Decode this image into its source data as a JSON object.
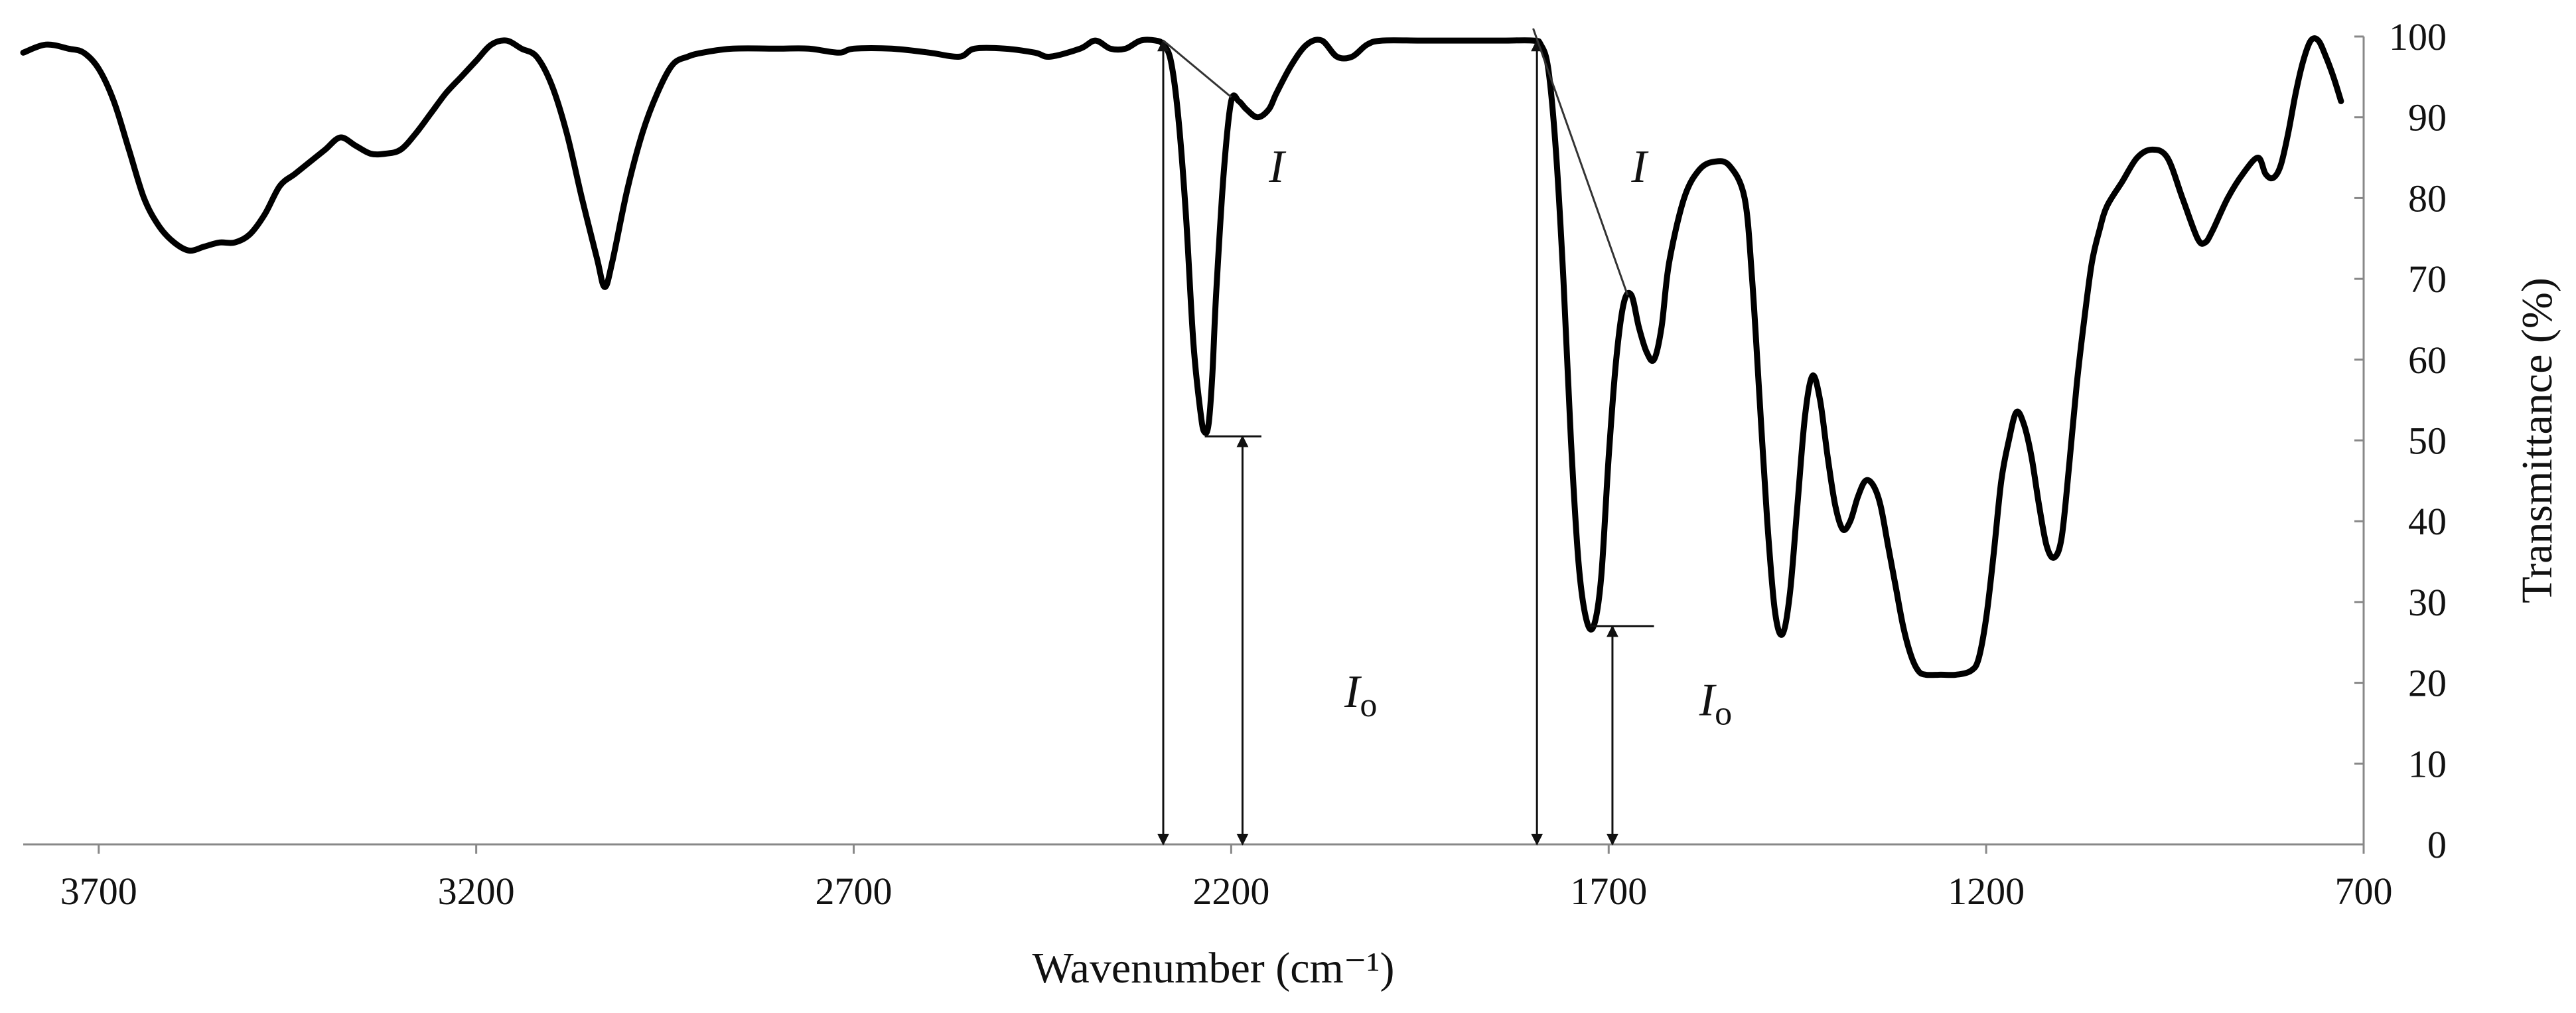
{
  "chart_data": {
    "type": "line",
    "title": "",
    "xlabel": "Wavenumber (cm⁻¹)",
    "ylabel": "Transmittance (%)",
    "xlim": [
      3800,
      700
    ],
    "ylim": [
      0,
      100
    ],
    "x_reversed": true,
    "x_ticks": [
      3700,
      3200,
      2700,
      2200,
      1700,
      1200,
      700
    ],
    "y_ticks": [
      0,
      10,
      20,
      30,
      40,
      50,
      60,
      70,
      80,
      90,
      100
    ],
    "grid": false,
    "line_color": "#000000",
    "annotations": [
      {
        "text": "I",
        "x": 2150,
        "y": 82
      },
      {
        "text": "I",
        "sub": "o",
        "x": 2050,
        "y": 17
      },
      {
        "text": "I",
        "x": 1670,
        "y": 82
      },
      {
        "text": "I",
        "sub": "o",
        "x": 1580,
        "y": 16
      }
    ],
    "series": [
      {
        "points": [
          [
            3800,
            98
          ],
          [
            3770,
            99
          ],
          [
            3740,
            98.5
          ],
          [
            3720,
            98
          ],
          [
            3700,
            96
          ],
          [
            3680,
            92
          ],
          [
            3660,
            86
          ],
          [
            3640,
            80
          ],
          [
            3620,
            76.5
          ],
          [
            3600,
            74.5
          ],
          [
            3580,
            73.5
          ],
          [
            3560,
            74
          ],
          [
            3540,
            74.5
          ],
          [
            3520,
            74.5
          ],
          [
            3500,
            75.5
          ],
          [
            3480,
            78
          ],
          [
            3460,
            81.5
          ],
          [
            3440,
            83
          ],
          [
            3420,
            84.5
          ],
          [
            3400,
            86
          ],
          [
            3380,
            87.5
          ],
          [
            3360,
            86.5
          ],
          [
            3340,
            85.5
          ],
          [
            3320,
            85.5
          ],
          [
            3300,
            86
          ],
          [
            3280,
            88
          ],
          [
            3260,
            90.5
          ],
          [
            3240,
            93
          ],
          [
            3220,
            95
          ],
          [
            3200,
            97
          ],
          [
            3180,
            99
          ],
          [
            3160,
            99.5
          ],
          [
            3140,
            98.5
          ],
          [
            3120,
            97.5
          ],
          [
            3100,
            94
          ],
          [
            3080,
            88
          ],
          [
            3060,
            80
          ],
          [
            3040,
            72.5
          ],
          [
            3030,
            69
          ],
          [
            3020,
            72
          ],
          [
            3000,
            81
          ],
          [
            2980,
            88
          ],
          [
            2960,
            93
          ],
          [
            2940,
            96.5
          ],
          [
            2920,
            97.5
          ],
          [
            2900,
            98
          ],
          [
            2860,
            98.5
          ],
          [
            2800,
            98.5
          ],
          [
            2760,
            98.5
          ],
          [
            2720,
            98
          ],
          [
            2700,
            98.5
          ],
          [
            2650,
            98.5
          ],
          [
            2600,
            98
          ],
          [
            2560,
            97.5
          ],
          [
            2540,
            98.5
          ],
          [
            2500,
            98.5
          ],
          [
            2460,
            98
          ],
          [
            2440,
            97.5
          ],
          [
            2400,
            98.5
          ],
          [
            2380,
            99.5
          ],
          [
            2360,
            98.5
          ],
          [
            2340,
            98.5
          ],
          [
            2320,
            99.5
          ],
          [
            2300,
            99.5
          ],
          [
            2290,
            99
          ],
          [
            2280,
            97
          ],
          [
            2270,
            90
          ],
          [
            2260,
            78
          ],
          [
            2250,
            62
          ],
          [
            2240,
            53
          ],
          [
            2235,
            51
          ],
          [
            2230,
            52
          ],
          [
            2225,
            58
          ],
          [
            2220,
            68
          ],
          [
            2210,
            83
          ],
          [
            2200,
            92
          ],
          [
            2190,
            92
          ],
          [
            2180,
            91
          ],
          [
            2165,
            90
          ],
          [
            2150,
            91
          ],
          [
            2140,
            93
          ],
          [
            2120,
            96.5
          ],
          [
            2100,
            99
          ],
          [
            2080,
            99.5
          ],
          [
            2060,
            97.5
          ],
          [
            2040,
            97.5
          ],
          [
            2020,
            99
          ],
          [
            2000,
            99.5
          ],
          [
            1950,
            99.5
          ],
          [
            1900,
            99.5
          ],
          [
            1840,
            99.5
          ],
          [
            1800,
            99.5
          ],
          [
            1790,
            99
          ],
          [
            1780,
            96
          ],
          [
            1770,
            86
          ],
          [
            1760,
            70
          ],
          [
            1750,
            50
          ],
          [
            1740,
            35
          ],
          [
            1730,
            28
          ],
          [
            1720,
            27
          ],
          [
            1710,
            33
          ],
          [
            1700,
            48
          ],
          [
            1690,
            60
          ],
          [
            1680,
            67
          ],
          [
            1670,
            68
          ],
          [
            1660,
            64
          ],
          [
            1650,
            61
          ],
          [
            1640,
            60
          ],
          [
            1630,
            64
          ],
          [
            1620,
            72
          ],
          [
            1600,
            80
          ],
          [
            1580,
            83.5
          ],
          [
            1560,
            84.5
          ],
          [
            1540,
            84
          ],
          [
            1520,
            80
          ],
          [
            1510,
            70
          ],
          [
            1500,
            55
          ],
          [
            1490,
            40
          ],
          [
            1480,
            29
          ],
          [
            1470,
            26
          ],
          [
            1460,
            31
          ],
          [
            1450,
            42
          ],
          [
            1440,
            53
          ],
          [
            1430,
            58
          ],
          [
            1420,
            55
          ],
          [
            1410,
            48
          ],
          [
            1400,
            42
          ],
          [
            1390,
            39
          ],
          [
            1380,
            40
          ],
          [
            1370,
            43
          ],
          [
            1360,
            45
          ],
          [
            1350,
            44.5
          ],
          [
            1340,
            42
          ],
          [
            1330,
            37
          ],
          [
            1320,
            32
          ],
          [
            1310,
            27
          ],
          [
            1300,
            23.5
          ],
          [
            1290,
            21.5
          ],
          [
            1280,
            21
          ],
          [
            1260,
            21
          ],
          [
            1240,
            21
          ],
          [
            1220,
            21.5
          ],
          [
            1210,
            23
          ],
          [
            1200,
            28
          ],
          [
            1190,
            36
          ],
          [
            1180,
            45
          ],
          [
            1170,
            50
          ],
          [
            1160,
            53.5
          ],
          [
            1150,
            52
          ],
          [
            1140,
            48
          ],
          [
            1130,
            42
          ],
          [
            1120,
            37
          ],
          [
            1110,
            35.5
          ],
          [
            1100,
            38
          ],
          [
            1090,
            47
          ],
          [
            1080,
            57
          ],
          [
            1070,
            65
          ],
          [
            1060,
            72
          ],
          [
            1050,
            76
          ],
          [
            1040,
            79
          ],
          [
            1020,
            82
          ],
          [
            1000,
            85
          ],
          [
            980,
            86
          ],
          [
            960,
            85
          ],
          [
            940,
            80
          ],
          [
            920,
            75
          ],
          [
            910,
            74.5
          ],
          [
            900,
            76
          ],
          [
            880,
            80
          ],
          [
            860,
            83
          ],
          [
            840,
            85
          ],
          [
            830,
            83
          ],
          [
            820,
            82.5
          ],
          [
            810,
            84
          ],
          [
            800,
            88
          ],
          [
            790,
            93
          ],
          [
            780,
            97
          ],
          [
            770,
            99.5
          ],
          [
            760,
            99.5
          ],
          [
            750,
            97.5
          ],
          [
            740,
            95
          ],
          [
            730,
            92
          ]
        ]
      }
    ]
  }
}
